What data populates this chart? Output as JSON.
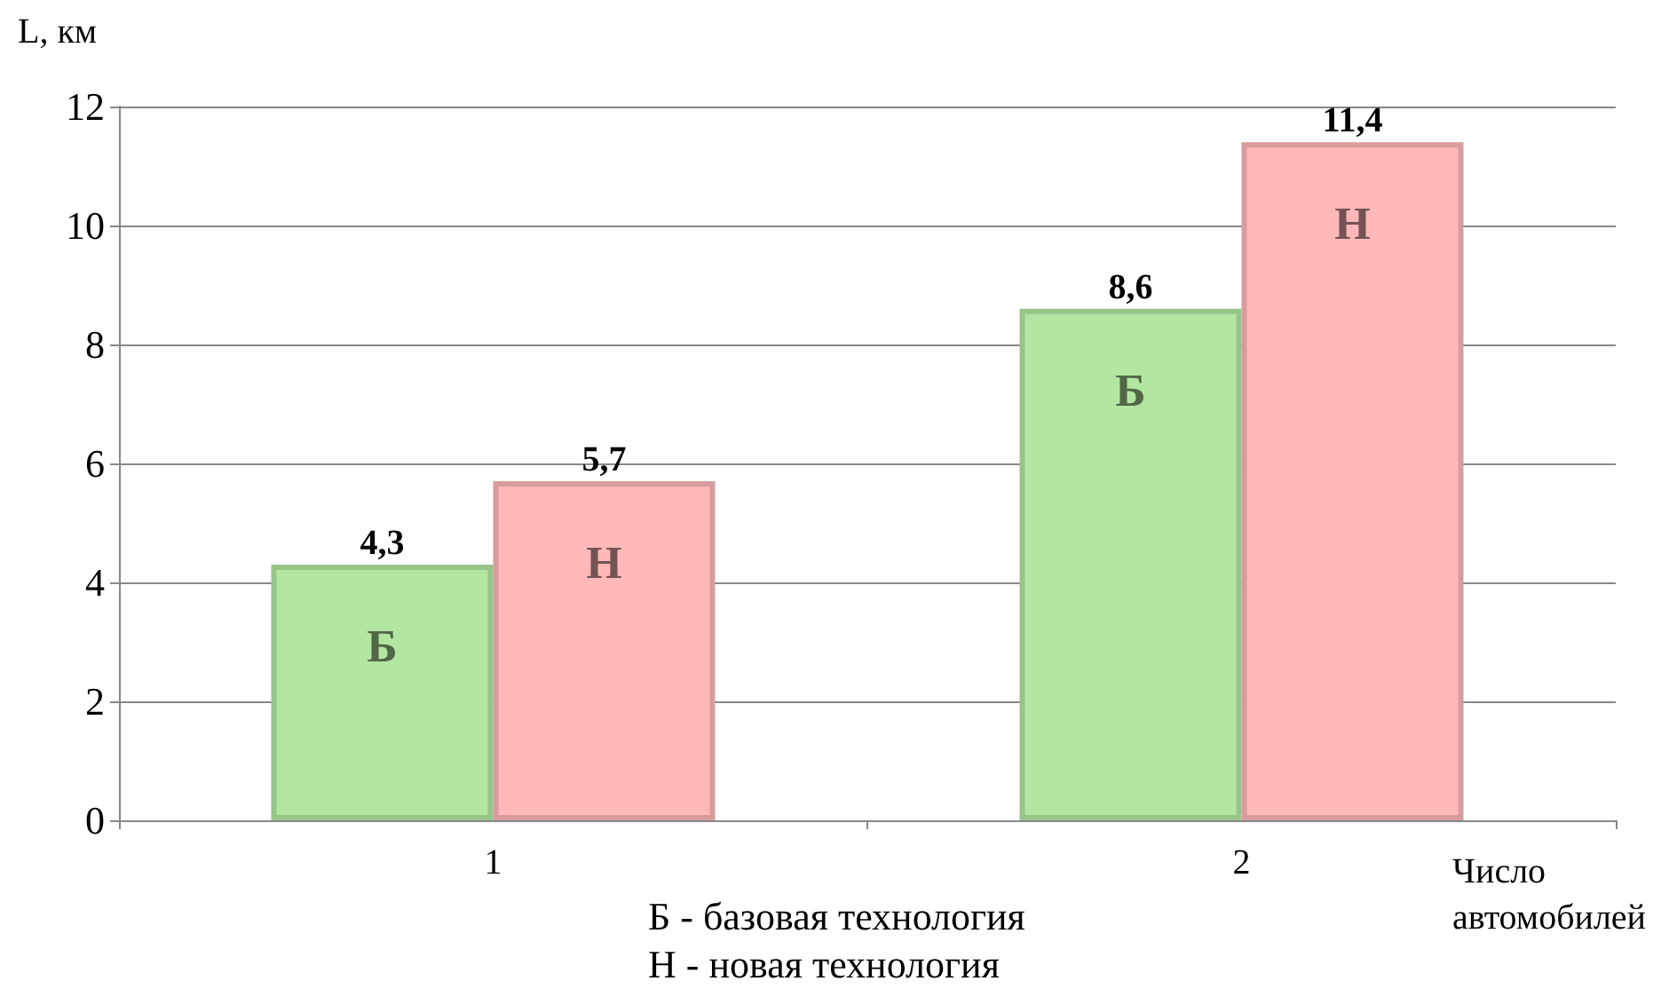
{
  "chart_data": {
    "type": "bar",
    "ylabel": "L, км",
    "xlabel": "Число автомобилей",
    "categories": [
      "1",
      "2"
    ],
    "series": [
      {
        "name": "Б",
        "color": "#b3e6a1",
        "values": [
          4.3,
          8.6
        ],
        "value_labels": [
          "4,3",
          "8,6"
        ]
      },
      {
        "name": "Н",
        "color": "#ffb8b8",
        "values": [
          5.7,
          11.4
        ],
        "value_labels": [
          "5,7",
          "11,4"
        ]
      }
    ],
    "ylim": [
      0,
      12
    ],
    "yticks": [
      0,
      2,
      4,
      6,
      8,
      10,
      12
    ],
    "grid": "y",
    "legend": false,
    "annotations": [
      "Б - базовая технология",
      "Н - новая технология"
    ]
  }
}
